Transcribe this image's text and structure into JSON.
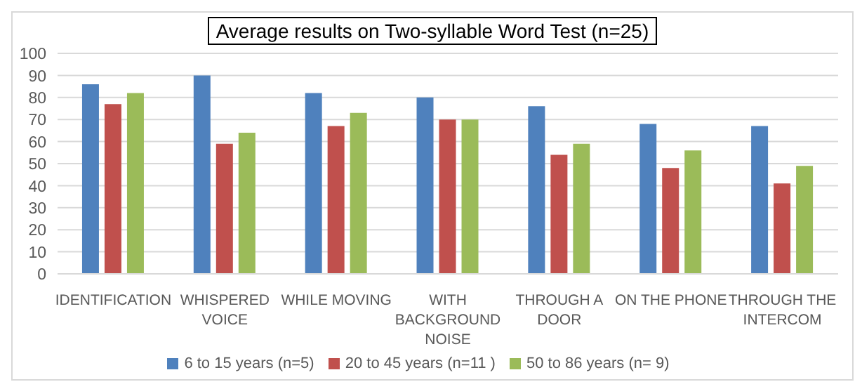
{
  "chart_data": {
    "type": "bar",
    "title": "Average results on Two-syllable Word Test (n=25)",
    "categories": [
      "IDENTIFICATION",
      "WHISPERED VOICE",
      "WHILE MOVING",
      "WITH BACKGROUND NOISE",
      "THROUGH A DOOR",
      "ON THE PHONE",
      "THROUGH THE INTERCOM"
    ],
    "series": [
      {
        "name": "6 to 15 years (n=5)",
        "color": "#4f81bd",
        "values": [
          86,
          90,
          82,
          80,
          76,
          68,
          67
        ]
      },
      {
        "name": "20 to 45 years (n=11 )",
        "color": "#c0504d",
        "values": [
          77,
          59,
          67,
          70,
          54,
          48,
          41
        ]
      },
      {
        "name": "50 to 86 years (n= 9)",
        "color": "#9bbb59",
        "values": [
          82,
          64,
          73,
          70,
          59,
          56,
          49
        ]
      }
    ],
    "ylim": [
      0,
      100
    ],
    "yticks": [
      0,
      10,
      20,
      30,
      40,
      50,
      60,
      70,
      80,
      90,
      100
    ],
    "grid": "y",
    "legend": "bottom"
  }
}
